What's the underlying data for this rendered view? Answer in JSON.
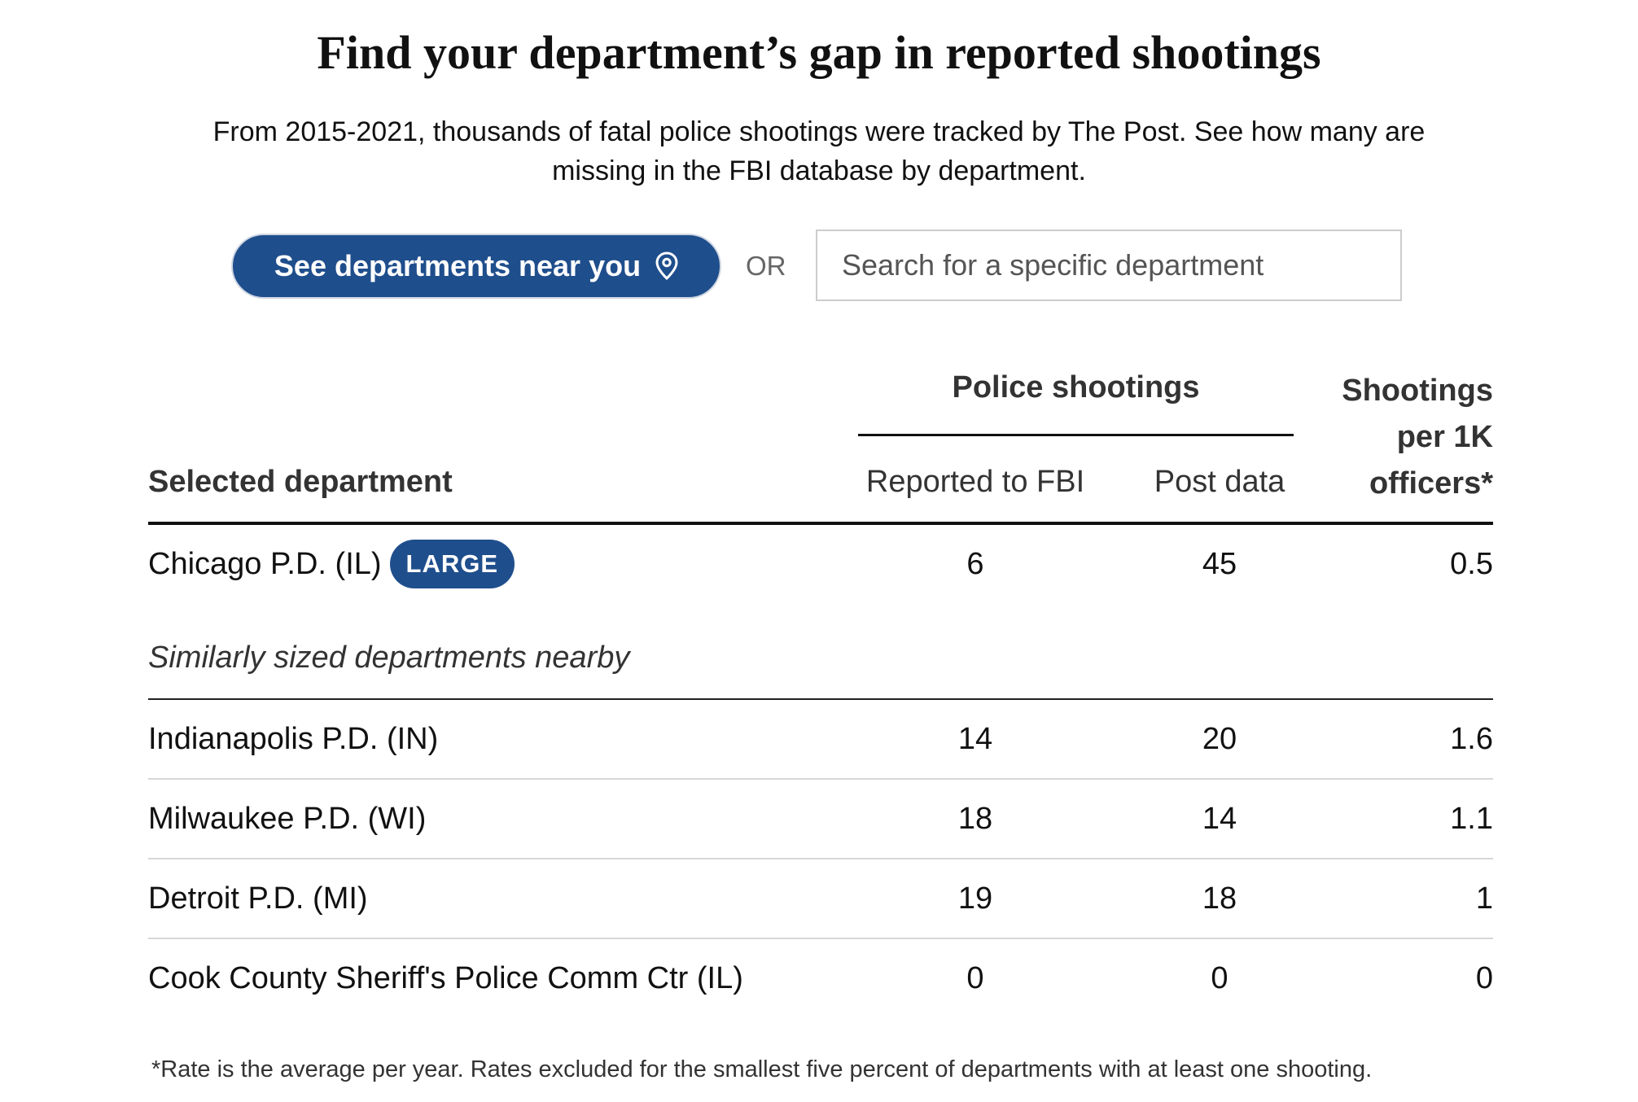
{
  "header": {
    "title": "Find your department’s gap in reported shootings",
    "subtitle": "From 2015-2021, thousands of fatal police shootings were tracked by The Post. See how many are missing in the FBI database by department."
  },
  "controls": {
    "near_button_label": "See departments near you",
    "near_button_icon": "location-pin-icon",
    "or_label": "OR",
    "search_placeholder": "Search for a specific department",
    "search_value": ""
  },
  "table": {
    "group_header": "Police shootings",
    "columns": {
      "department": "Selected department",
      "reported_fbi": "Reported to FBI",
      "post_data": "Post data",
      "rate_line1": "Shootings",
      "rate_line2": "per 1K",
      "rate_line3": "officers*"
    },
    "selected": {
      "name": "Chicago P.D. (IL)",
      "badge": "LARGE",
      "reported_fbi": "6",
      "post_data": "45",
      "rate": "0.5"
    },
    "nearby_label": "Similarly sized departments nearby",
    "nearby": [
      {
        "name": "Indianapolis P.D. (IN)",
        "reported_fbi": "14",
        "post_data": "20",
        "rate": "1.6"
      },
      {
        "name": "Milwaukee P.D. (WI)",
        "reported_fbi": "18",
        "post_data": "14",
        "rate": "1.1"
      },
      {
        "name": "Detroit P.D. (MI)",
        "reported_fbi": "19",
        "post_data": "18",
        "rate": "1"
      },
      {
        "name": "Cook County Sheriff's Police Comm Ctr (IL)",
        "reported_fbi": "0",
        "post_data": "0",
        "rate": "0"
      }
    ]
  },
  "footnote": "*Rate is the average per year. Rates excluded for the smallest five percent of departments with at least one shooting.",
  "colors": {
    "accent": "#1f4e8c",
    "text": "#111111",
    "muted": "#666666"
  }
}
